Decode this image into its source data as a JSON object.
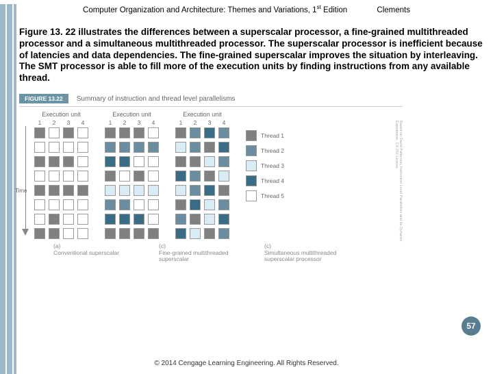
{
  "header": {
    "title_pre": "Computer Organization and Architecture: Themes and Variations, 1",
    "title_sup": "st",
    "title_post": " Edition",
    "author": "Clements"
  },
  "body_text": "Figure 13. 22 illustrates the differences between a superscalar processor, a fine-grained multithreaded processor and a simultaneous multithreaded processor. The superscalar processor is inefficient because of latencies and data dependencies. The fine-grained superscalar improves the situation by interleaving. The SMT processor is able to fill more of the execution units by finding instructions from any available thread.",
  "figure": {
    "badge": "FIGURE 13.22",
    "caption": "Summary of instruction and thread level parallelisms",
    "panel_title": "Execution unit",
    "col_labels": [
      "1",
      "2",
      "3",
      "4"
    ],
    "time_label": "Time",
    "thread_colors": {
      "t1": "#808080",
      "t2": "#6a8da0",
      "t3": "#d9ecf5",
      "t4": "#3a6c86",
      "t5": "#ffffff"
    },
    "cell_border": "#999999",
    "panels": {
      "a": {
        "tag": "(a)",
        "caption": "Conventional superscalar",
        "rows": [
          [
            "t1",
            "",
            "t1",
            ""
          ],
          [
            "",
            "",
            "",
            ""
          ],
          [
            "t1",
            "t1",
            "t1",
            ""
          ],
          [
            "",
            "",
            "",
            ""
          ],
          [
            "t1",
            "t1",
            "t1",
            "t1"
          ],
          [
            "",
            "",
            "",
            ""
          ],
          [
            "",
            "t1",
            "",
            ""
          ],
          [
            "t1",
            "t1",
            "",
            ""
          ]
        ]
      },
      "b": {
        "tag": "(c)",
        "caption": "Fine-grained multithreaded superscalar",
        "rows": [
          [
            "t1",
            "t1",
            "t1",
            ""
          ],
          [
            "t2",
            "t2",
            "t2",
            "t2"
          ],
          [
            "t4",
            "t4",
            "",
            ""
          ],
          [
            "t1",
            "",
            "t1",
            ""
          ],
          [
            "t3",
            "t3",
            "t3",
            "t3"
          ],
          [
            "t2",
            "t2",
            "",
            ""
          ],
          [
            "t4",
            "t4",
            "t4",
            ""
          ],
          [
            "t1",
            "t1",
            "t1",
            "t1"
          ]
        ]
      },
      "c": {
        "tag": "(c)",
        "caption": "Simultaneous multithreaded superscalar processor",
        "rows": [
          [
            "t1",
            "t2",
            "t4",
            "t2"
          ],
          [
            "t3",
            "t2",
            "t1",
            "t4"
          ],
          [
            "t1",
            "t1",
            "t3",
            "t2"
          ],
          [
            "t4",
            "t2",
            "t1",
            "t3"
          ],
          [
            "t3",
            "t2",
            "t4",
            "t1"
          ],
          [
            "t1",
            "t4",
            "t3",
            "t2"
          ],
          [
            "t2",
            "t1",
            "t3",
            "t4"
          ],
          [
            "t4",
            "t3",
            "t1",
            "t2"
          ]
        ]
      }
    },
    "legend": [
      {
        "label": "Thread 1",
        "key": "t1"
      },
      {
        "label": "Thread 2",
        "key": "t2"
      },
      {
        "label": "Thread 3",
        "key": "t3"
      },
      {
        "label": "Thread 4",
        "key": "t4"
      },
      {
        "label": "Thread 5",
        "key": "t5"
      }
    ],
    "vtext": "Based on David Patterson, Instruction Level Parallelism and Its Dynamic Exploitation, CS 252 Lecture"
  },
  "page_number": "57",
  "copyright": "© 2014 Cengage Learning Engineering. All Rights Reserved."
}
